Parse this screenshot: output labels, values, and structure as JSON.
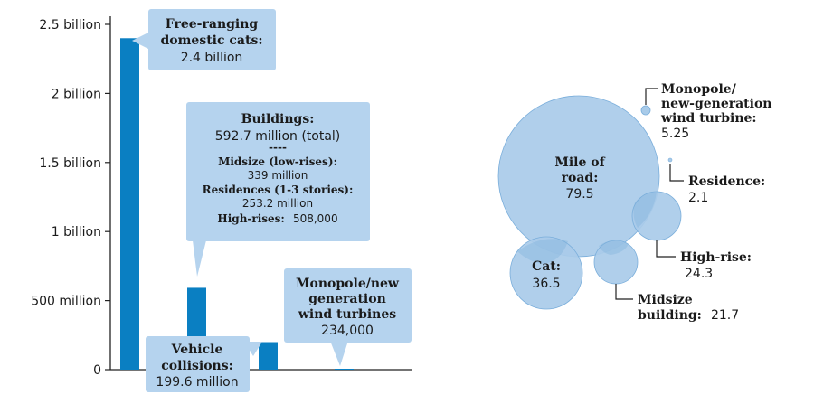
{
  "chart_data": [
    {
      "type": "bar",
      "categories": [
        "Free-ranging domestic cats",
        "Buildings",
        "Vehicle collisions",
        "Monopole/new generation wind turbines"
      ],
      "values": [
        2400000000,
        592700000,
        199600000,
        234000
      ],
      "ylim": [
        0,
        2500000000
      ],
      "yticks": [
        0,
        500000000,
        1000000000,
        1500000000,
        2000000000,
        2500000000
      ],
      "ytick_labels": [
        "0",
        "500 million",
        "1 billion",
        "1.5 billion",
        "2 billion",
        "2.5 billion"
      ],
      "bar_color": "#0a7fc2",
      "callout_color": "#b5d3ee",
      "annotations": {
        "cats": {
          "title": "Free-ranging domestic cats:",
          "value": "2.4 billion"
        },
        "buildings": {
          "title": "Buildings:",
          "total": "592.7 million (total)",
          "divider": "----",
          "midsize_label": "Midsize (low-rises):",
          "midsize_value": "339 million",
          "residences_label": "Residences (1-3 stories):",
          "residences_value": "253.2 million",
          "highrise_label": "High-rises:",
          "highrise_value": "508,000"
        },
        "vehicles": {
          "title": "Vehicle collisions:",
          "value": "199.6 million"
        },
        "turbines": {
          "title": "Monopole/new generation wind turbines",
          "value": "234,000"
        }
      }
    },
    {
      "type": "bubble",
      "bubble_color": "#a9cbe9",
      "bubble_edge": "#7aaedb",
      "items": [
        {
          "key": "road",
          "label": "Mile of road:",
          "value": 79.5
        },
        {
          "key": "cat",
          "label": "Cat:",
          "value": 36.5
        },
        {
          "key": "midsize",
          "label": "Midsize building:",
          "value": 21.7
        },
        {
          "key": "highrise",
          "label": "High-rise:",
          "value": 24.3
        },
        {
          "key": "turbine",
          "label": "Monopole/new-generation wind turbine:",
          "value": 5.25
        },
        {
          "key": "residence",
          "label": "Residence:",
          "value": 2.1
        }
      ],
      "text": {
        "road_line1": "Mile of",
        "road_line2": "road:",
        "road_value": "79.5",
        "cat_label": "Cat:",
        "cat_value": "36.5",
        "midsize_line1": "Midsize",
        "midsize_line2": "building:",
        "midsize_value": "21.7",
        "highrise_label": "High-rise:",
        "highrise_value": "24.3",
        "turbine_line1": "Monopole/",
        "turbine_line2": "new-generation",
        "turbine_line3": "wind turbine:",
        "turbine_value": "5.25",
        "residence_label": "Residence:",
        "residence_value": "2.1"
      }
    }
  ]
}
